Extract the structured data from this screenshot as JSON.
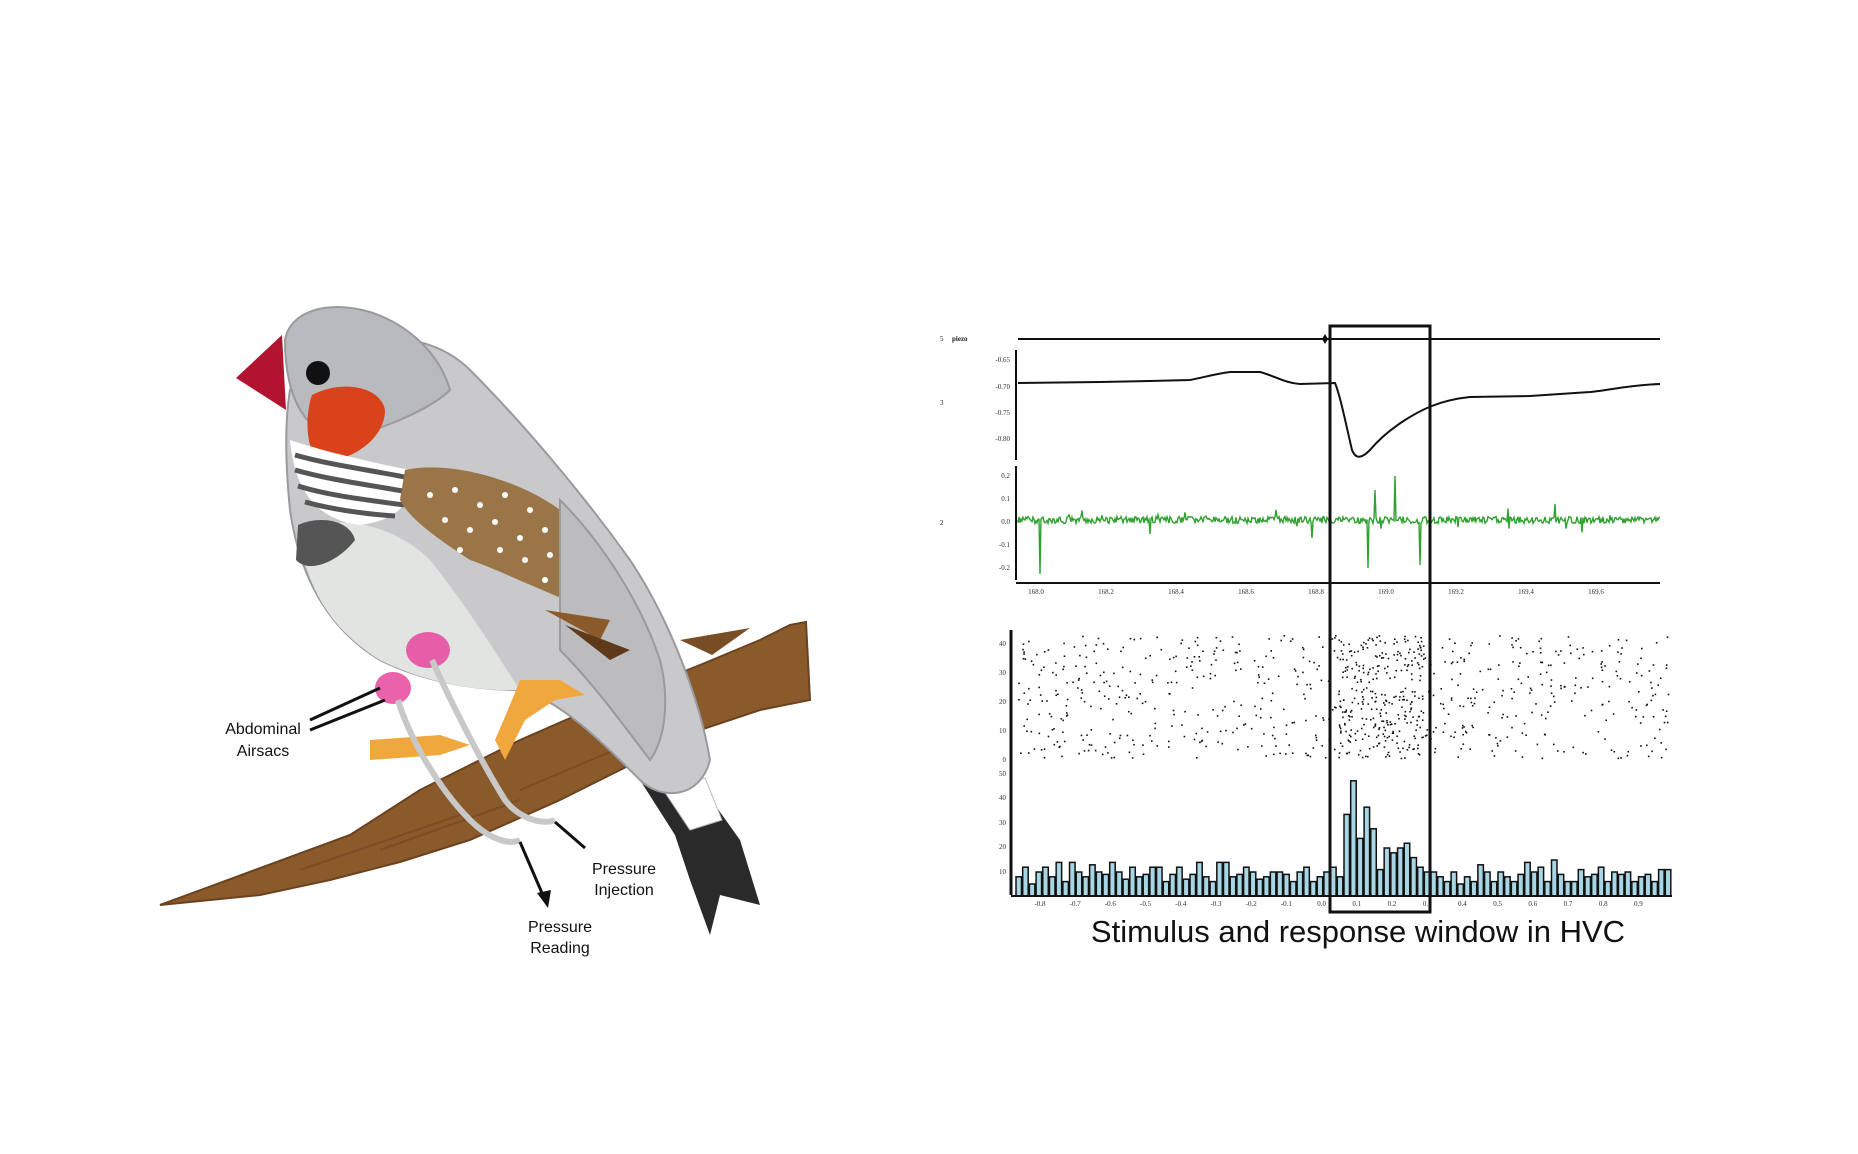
{
  "labels": {
    "abdominal_line1": "Abdominal",
    "abdominal_line2": "Airsacs",
    "injection_line1": "Pressure",
    "injection_line2": "Injection",
    "reading_line1": "Pressure",
    "reading_line2": "Reading"
  },
  "caption": "Stimulus and response window in HVC",
  "recording": {
    "channel_numbers": [
      "5",
      "3",
      "2"
    ],
    "stim_channel_label": "piezo",
    "pressure_ticks": [
      "-0.65",
      "-0.70",
      "-0.75",
      "-0.80"
    ],
    "hvc_ticks": [
      "0.2",
      "0.1",
      "0.0",
      "-0.1",
      "-0.2"
    ],
    "time_ticks": [
      "168.0",
      "168.2",
      "168.4",
      "168.6",
      "168.8",
      "169.0",
      "169.2",
      "169.4",
      "169.6"
    ]
  },
  "chart_data": {
    "type": "bar",
    "ylim": [
      0,
      50
    ],
    "raster_ticks": [
      "40",
      "30",
      "20",
      "10",
      "0"
    ],
    "psth_ticks": [
      "50",
      "40",
      "30",
      "20",
      "10"
    ],
    "x_ticks": [
      "-0.8",
      "-0.7",
      "-0.6",
      "-0.5",
      "-0.4",
      "-0.3",
      "-0.2",
      "-0.1",
      "0.0",
      "0.1",
      "0.2",
      "0.3",
      "0.4",
      "0.5",
      "0.6",
      "0.7",
      "0.8",
      "0.9"
    ],
    "values": [
      8,
      12,
      5,
      10,
      12,
      8,
      14,
      6,
      14,
      10,
      8,
      13,
      10,
      9,
      14,
      10,
      7,
      12,
      8,
      9,
      12,
      12,
      6,
      9,
      12,
      7,
      9,
      14,
      8,
      6,
      14,
      14,
      8,
      9,
      12,
      10,
      7,
      8,
      10,
      10,
      9,
      6,
      10,
      12,
      6,
      8,
      10,
      12,
      8,
      34,
      48,
      24,
      37,
      28,
      11,
      20,
      18,
      20,
      22,
      16,
      12,
      10,
      10,
      8,
      6,
      10,
      5,
      8,
      6,
      13,
      10,
      6,
      10,
      8,
      6,
      9,
      14,
      10,
      12,
      6,
      15,
      9,
      6,
      6,
      11,
      8,
      9,
      12,
      6,
      10,
      9,
      10,
      6,
      8,
      9,
      6,
      11,
      11
    ],
    "colors": {
      "bar_fill": "#a9d6e5",
      "bar_stroke": "#111111",
      "trace_green": "#2fa12f",
      "trace_black": "#111111"
    }
  }
}
